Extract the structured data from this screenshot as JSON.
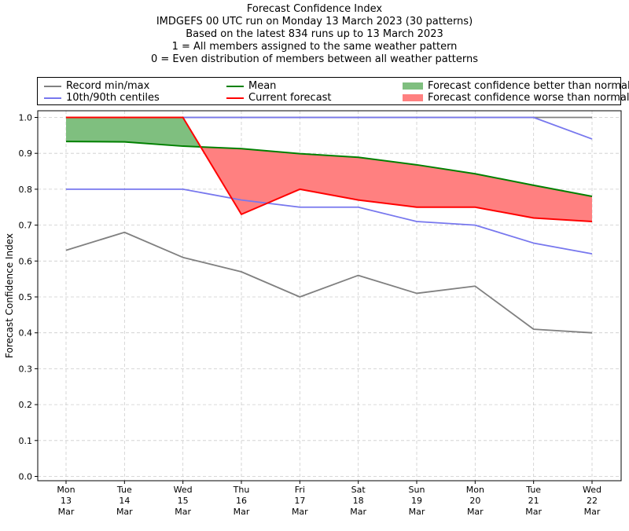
{
  "title": {
    "lines": [
      "Forecast Confidence Index",
      "IMDGEFS 00 UTC run on Monday 13 March 2023 (30 patterns)",
      "Based on the latest 834 runs up to 13 March 2023",
      "1 = All members assigned to the same weather pattern",
      "0 = Even distribution of members between all weather patterns"
    ]
  },
  "legend": {
    "placement": "top",
    "items": [
      {
        "label": "Record min/max",
        "kind": "line",
        "color": "#808080"
      },
      {
        "label": "10th/90th centiles",
        "kind": "line",
        "color": "#7777ee"
      },
      {
        "label": "Mean",
        "kind": "line",
        "color": "#008000"
      },
      {
        "label": "Current forecast",
        "kind": "line",
        "color": "#ff0000"
      },
      {
        "label": "Forecast confidence better than normal",
        "kind": "box",
        "color": "#7fbf7f"
      },
      {
        "label": "Forecast confidence worse than normal",
        "kind": "box",
        "color": "#ff8080"
      }
    ]
  },
  "chart_data": {
    "type": "line",
    "ylabel": "Forecast Confidence Index",
    "ylim": [
      0.0,
      1.0
    ],
    "yticks": [
      "0.0",
      "0.1",
      "0.2",
      "0.3",
      "0.4",
      "0.5",
      "0.6",
      "0.7",
      "0.8",
      "0.9",
      "1.0"
    ],
    "grid": true,
    "categories": [
      [
        "Mon",
        "13",
        "Mar"
      ],
      [
        "Tue",
        "14",
        "Mar"
      ],
      [
        "Wed",
        "15",
        "Mar"
      ],
      [
        "Thu",
        "16",
        "Mar"
      ],
      [
        "Fri",
        "17",
        "Mar"
      ],
      [
        "Sat",
        "18",
        "Mar"
      ],
      [
        "Sun",
        "19",
        "Mar"
      ],
      [
        "Mon",
        "20",
        "Mar"
      ],
      [
        "Tue",
        "21",
        "Mar"
      ],
      [
        "Wed",
        "22",
        "Mar"
      ]
    ],
    "series": [
      {
        "name": "Record min/max",
        "color": "#808080",
        "role": "record_min",
        "values": [
          0.63,
          0.68,
          0.61,
          0.57,
          0.5,
          0.56,
          0.51,
          0.53,
          0.41,
          0.4
        ]
      },
      {
        "name": "Record min/max",
        "color": "#808080",
        "role": "record_max",
        "values": [
          1.0,
          1.0,
          1.0,
          1.0,
          1.0,
          1.0,
          1.0,
          1.0,
          1.0,
          1.0
        ]
      },
      {
        "name": "10th/90th centiles",
        "color": "#7777ee",
        "role": "p10",
        "values": [
          0.8,
          0.8,
          0.8,
          0.77,
          0.75,
          0.75,
          0.71,
          0.7,
          0.65,
          0.62
        ]
      },
      {
        "name": "10th/90th centiles",
        "color": "#7777ee",
        "role": "p90",
        "values": [
          1.0,
          1.0,
          1.0,
          1.0,
          1.0,
          1.0,
          1.0,
          1.0,
          1.0,
          0.94
        ]
      },
      {
        "name": "Mean",
        "color": "#008000",
        "role": "mean",
        "values": [
          0.933,
          0.932,
          0.92,
          0.913,
          0.899,
          0.889,
          0.868,
          0.843,
          0.811,
          0.78
        ]
      },
      {
        "name": "Current forecast",
        "color": "#ff0000",
        "role": "current",
        "values": [
          1.0,
          1.0,
          1.0,
          0.73,
          0.8,
          0.77,
          0.75,
          0.75,
          0.72,
          0.71
        ]
      }
    ],
    "fill_better_color": "#7fbf7f",
    "fill_worse_color": "#ff8080"
  }
}
